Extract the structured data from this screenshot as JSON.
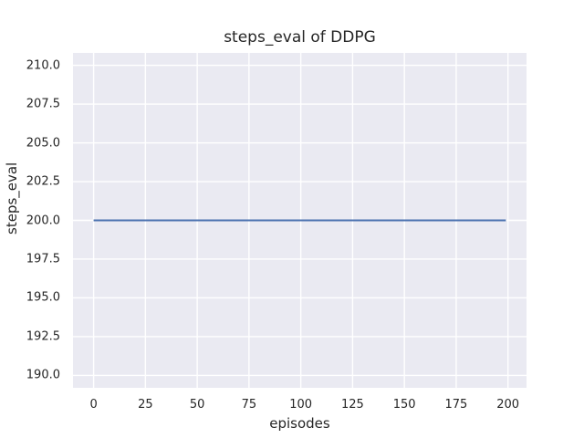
{
  "figure": {
    "background": "#ffffff",
    "axes_background": "#eaeaf2",
    "grid_color": "#ffffff",
    "text_color": "#262626"
  },
  "chart_data": {
    "type": "line",
    "title": "steps_eval of DDPG",
    "xlabel": "episodes",
    "ylabel": "steps_eval",
    "xlim": [
      -9.95,
      208.95
    ],
    "ylim": [
      189.2,
      210.8
    ],
    "x_tick_values": [
      0,
      25,
      50,
      75,
      100,
      125,
      150,
      175,
      200
    ],
    "x_tick_labels": [
      "0",
      "25",
      "50",
      "75",
      "100",
      "125",
      "150",
      "175",
      "200"
    ],
    "y_tick_values": [
      190.0,
      192.5,
      195.0,
      197.5,
      200.0,
      202.5,
      205.0,
      207.5,
      210.0
    ],
    "y_tick_labels": [
      "190.0",
      "192.5",
      "195.0",
      "197.5",
      "200.0",
      "202.5",
      "205.0",
      "207.5",
      "210.0"
    ],
    "grid": true,
    "legend": null,
    "series": [
      {
        "name": "steps_eval",
        "color": "#4c72b0",
        "line_width": 2,
        "x": [
          0,
          199
        ],
        "y": [
          200,
          200
        ]
      }
    ]
  }
}
